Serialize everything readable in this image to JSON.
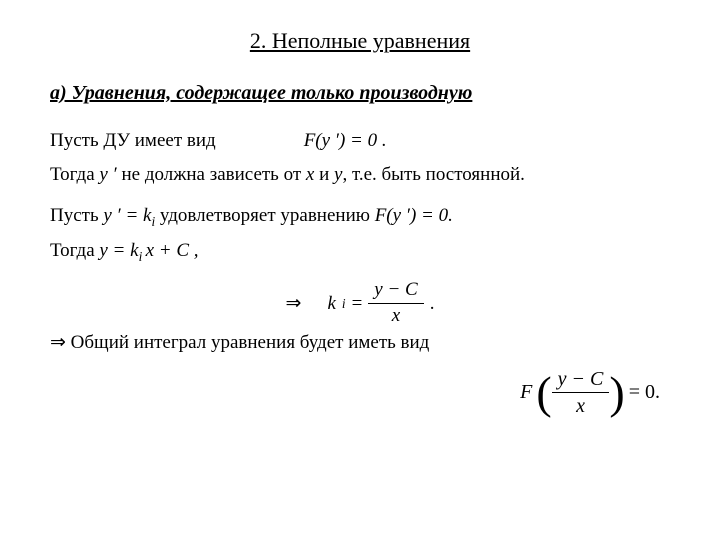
{
  "section": {
    "title": "2.  Неполные уравнения"
  },
  "subsection": {
    "title": "а) Уравнения,  содержащее только производную"
  },
  "p1": {
    "prefix": "Пусть ДУ имеет вид",
    "formula_F": "F",
    "formula_arg": "(y ′) = 0 ."
  },
  "p2": {
    "prefix": "Тогда  ",
    "yvar": "y ′",
    "rest": "  не должна зависеть от  ",
    "xvar": "x",
    "and": "  и  ",
    "yv": "y",
    "tail": ", т.е. быть постоянной."
  },
  "p3": {
    "prefix": "Пусть  ",
    "lhs_y": "y ′ = k",
    "sub_i": "i",
    "mid": "  удовлетворяет уравнению ",
    "F": "F",
    "arg": "(y ′) = 0."
  },
  "p4": {
    "prefix": "Тогда  ",
    "eq_y": "y = k",
    "sub_i": "i ",
    "eq_rest": "x + C ,"
  },
  "formula_center": {
    "arrow": "⇒",
    "k": "k",
    "sub_i": "i",
    "equals": "=",
    "num": "y − C",
    "den": "x",
    "dot": "."
  },
  "conclusion": {
    "arrow": "⇒",
    "text": " Общий интеграл уравнения будет иметь вид"
  },
  "formula_right": {
    "F": "F",
    "num": "y − C",
    "den": "x",
    "tail": "= 0."
  }
}
